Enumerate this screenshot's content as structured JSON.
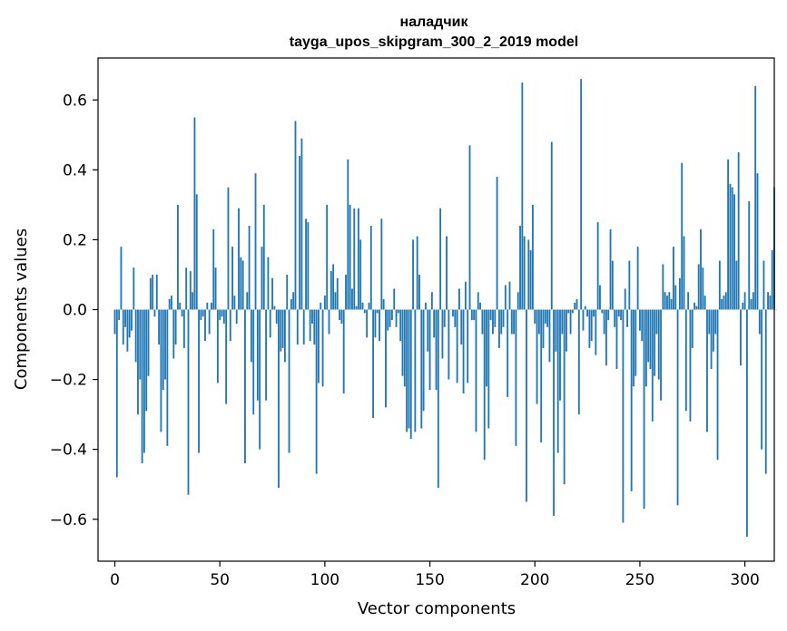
{
  "chart_data": {
    "type": "bar",
    "title": "наладчик",
    "subtitle": "tayga_upos_skipgram_300_2_2019 model",
    "xlabel": "Vector components",
    "ylabel": "Components values",
    "xlim": [
      -8,
      314
    ],
    "ylim": [
      -0.72,
      0.72
    ],
    "xticks": [
      0,
      50,
      100,
      150,
      200,
      250,
      300
    ],
    "xtick_labels": [
      "0",
      "50",
      "100",
      "150",
      "200",
      "250",
      "300"
    ],
    "yticks": [
      -0.6,
      -0.4,
      -0.2,
      0.0,
      0.2,
      0.4,
      0.6
    ],
    "ytick_labels": [
      "−0.6",
      "−0.4",
      "−0.2",
      "0.0",
      "0.2",
      "0.4",
      "0.6"
    ],
    "grid": false,
    "bar_color": "#1f77b4",
    "x_start": 0,
    "values": [
      -0.07,
      -0.48,
      -0.03,
      0.18,
      -0.1,
      -0.05,
      -0.12,
      -0.08,
      -0.06,
      0.12,
      -0.15,
      -0.3,
      -0.2,
      -0.44,
      -0.41,
      -0.29,
      -0.19,
      0.09,
      0.1,
      -0.02,
      0.1,
      -0.1,
      -0.35,
      -0.23,
      -0.2,
      -0.39,
      0.03,
      0.04,
      -0.14,
      -0.1,
      0.3,
      0.02,
      -0.02,
      -0.11,
      0.12,
      -0.53,
      0.11,
      0.05,
      0.55,
      0.33,
      -0.41,
      -0.03,
      -0.02,
      -0.09,
      0.02,
      -0.07,
      0.02,
      0.23,
      0.12,
      -0.21,
      -0.03,
      -0.02,
      -0.04,
      -0.27,
      0.35,
      -0.09,
      0.18,
      0.04,
      -0.04,
      0.29,
      0.15,
      0.14,
      -0.44,
      0.05,
      0.24,
      -0.15,
      -0.3,
      0.39,
      -0.26,
      -0.4,
      0.18,
      0.3,
      -0.26,
      0.15,
      -0.08,
      0.09,
      0.01,
      -0.04,
      -0.51,
      -0.12,
      -0.11,
      -0.15,
      0.1,
      -0.41,
      0.03,
      0.05,
      0.54,
      -0.1,
      0.44,
      0.49,
      -0.1,
      0.26,
      0.25,
      -0.09,
      -0.04,
      -0.1,
      -0.47,
      -0.21,
      0.02,
      -0.22,
      0.04,
      0.3,
      -0.07,
      0.11,
      0.13,
      0.05,
      0.09,
      -0.03,
      -0.04,
      -0.24,
      0.1,
      0.43,
      0.3,
      0.06,
      0.29,
      0.01,
      0.29,
      0.2,
      0.02,
      -0.01,
      -0.08,
      0.02,
      0.24,
      -0.31,
      -0.08,
      -0.01,
      -0.09,
      0.26,
      0.03,
      -0.28,
      -0.06,
      -0.05,
      -0.03,
      0.06,
      -0.05,
      -0.01,
      -0.09,
      -0.19,
      -0.22,
      -0.35,
      -0.34,
      -0.37,
      0.2,
      -0.35,
      0.21,
      0.1,
      -0.34,
      -0.29,
      0.02,
      -0.12,
      -0.23,
      0.05,
      -0.08,
      -0.23,
      -0.51,
      0.29,
      -0.14,
      -0.05,
      0.21,
      -0.2,
      0.0,
      -0.02,
      -0.05,
      -0.21,
      0.06,
      -0.1,
      -0.24,
      0.08,
      -0.21,
      0.47,
      -0.03,
      -0.03,
      -0.35,
      0.05,
      0.02,
      -0.07,
      -0.43,
      -0.22,
      -0.34,
      -0.03,
      -0.07,
      -0.05,
      0.38,
      -0.11,
      -0.07,
      -0.05,
      0.07,
      -0.25,
      0.08,
      -0.07,
      -0.07,
      -0.39,
      0.05,
      0.24,
      0.65,
      0.21,
      -0.55,
      0.2,
      0.17,
      0.3,
      -0.04,
      -0.27,
      -0.07,
      -0.38,
      -0.11,
      -0.04,
      -0.05,
      -0.15,
      0.48,
      -0.59,
      -0.12,
      -0.41,
      -0.26,
      -0.07,
      -0.5,
      -0.12,
      -0.01,
      -0.07,
      -0.01,
      0.02,
      0.03,
      -0.3,
      0.66,
      -0.06,
      0.01,
      -0.02,
      -0.11,
      -0.09,
      -0.02,
      -0.13,
      0.25,
      0.07,
      -0.01,
      -0.07,
      -0.16,
      -0.03,
      0.23,
      0.14,
      -0.05,
      -0.17,
      -0.02,
      -0.03,
      -0.61,
      0.06,
      -0.05,
      0.14,
      -0.52,
      -0.22,
      -0.19,
      0.18,
      -0.06,
      -0.09,
      -0.57,
      -0.22,
      -0.15,
      -0.17,
      -0.32,
      -0.19,
      -0.07,
      -0.2,
      -0.26,
      0.13,
      0.05,
      0.04,
      0.05,
      0.03,
      0.18,
      0.07,
      -0.56,
      0.09,
      0.42,
      0.21,
      -0.29,
      0.05,
      -0.32,
      -0.11,
      0.02,
      0.01,
      0.13,
      0.23,
      0.12,
      0.04,
      -0.35,
      -0.07,
      -0.17,
      -0.12,
      -0.07,
      -0.43,
      0.14,
      0.03,
      0.04,
      0.05,
      0.43,
      0.36,
      0.35,
      0.33,
      0.14,
      0.45,
      -0.16,
      0.02,
      0.05,
      -0.65,
      0.31,
      0.03,
      0.05,
      0.64,
      0.39,
      -0.07,
      -0.4,
      0.14,
      -0.47,
      0.05,
      0.04,
      0.17,
      0.35,
      0.0
    ]
  }
}
